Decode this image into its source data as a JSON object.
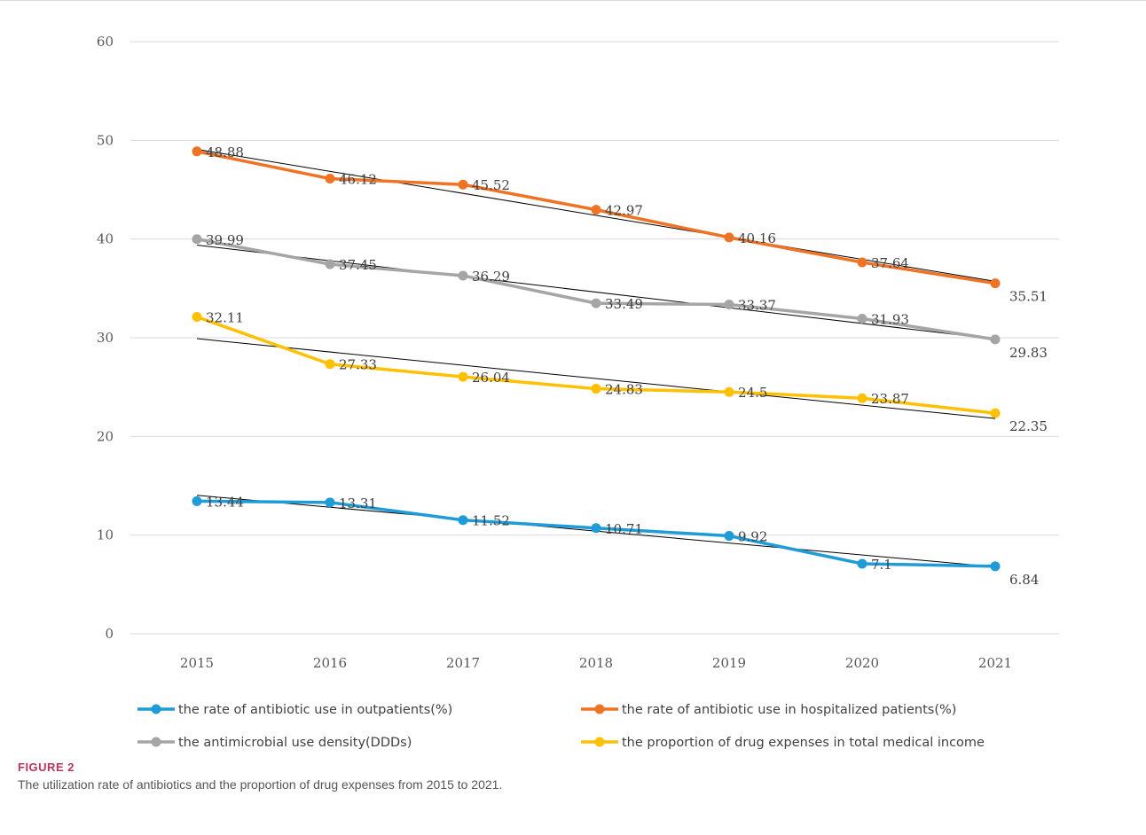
{
  "chart_data": {
    "type": "line",
    "categories": [
      "2015",
      "2016",
      "2017",
      "2018",
      "2019",
      "2020",
      "2021"
    ],
    "ylim": [
      0,
      60
    ],
    "yticks": [
      0,
      10,
      20,
      30,
      40,
      50,
      60
    ],
    "grid": true,
    "legend_position": "bottom",
    "trendlines": true,
    "series": [
      {
        "name": "the rate of antibiotic use in outpatients(%)",
        "color": "#1f9bd7",
        "values": [
          13.44,
          13.31,
          11.52,
          10.71,
          9.92,
          7.1,
          6.84
        ],
        "labels": [
          "13.44",
          "13.31",
          "11.52",
          "10.71",
          "9.92",
          "7.1",
          "6.84"
        ]
      },
      {
        "name": "the rate of antibiotic use in hospitalized patients(%)",
        "color": "#f07224",
        "values": [
          48.88,
          46.12,
          45.52,
          42.97,
          40.16,
          37.64,
          35.51
        ],
        "labels": [
          "48.88",
          "46.12",
          "45.52",
          "42.97",
          "40.16",
          "37.64",
          "35.51"
        ]
      },
      {
        "name": "the antimicrobial use density(DDDs)",
        "color": "#a5a5a5",
        "values": [
          39.99,
          37.45,
          36.29,
          33.49,
          33.37,
          31.93,
          29.83
        ],
        "labels": [
          "39.99",
          "37.45",
          "36.29",
          "33.49",
          "33.37",
          "31.93",
          "29.83"
        ]
      },
      {
        "name": "the proportion of drug expenses in total medical income",
        "color": "#ffc000",
        "values": [
          32.11,
          27.33,
          26.04,
          24.83,
          24.5,
          23.87,
          22.35
        ],
        "labels": [
          "32.11",
          "27.33",
          "26.04",
          "24.83",
          "24.5",
          "23.87",
          "22.35"
        ]
      }
    ]
  },
  "caption": {
    "label": "FIGURE 2",
    "text": "The utilization rate of antibiotics and the proportion of drug expenses from 2015 to 2021."
  }
}
